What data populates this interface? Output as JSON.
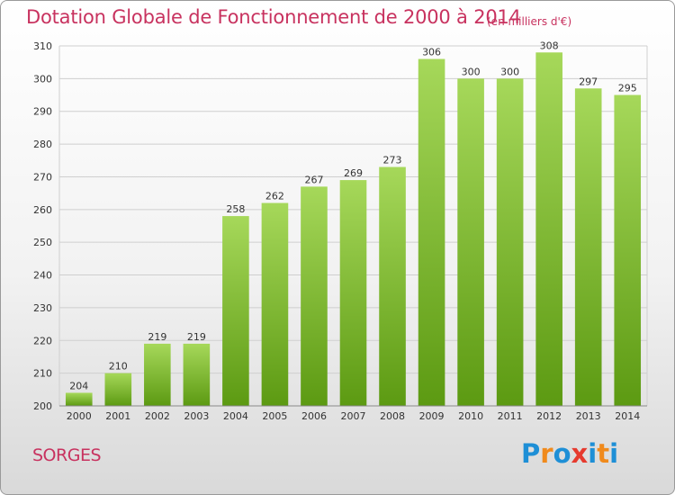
{
  "header": {
    "title": "Dotation Globale de Fonctionnement de 2000 à 2014",
    "unit": "(en milliers d'€)"
  },
  "footer": {
    "commune": "SORGES",
    "logo_letters": [
      "P",
      "r",
      "o",
      "x",
      "i",
      "t",
      "i"
    ],
    "logo_colors": [
      "#1e8fd6",
      "#f08a1c",
      "#1e8fd6",
      "#e63a2e",
      "#1e8fd6",
      "#f08a1c",
      "#1e8fd6"
    ]
  },
  "colors": {
    "bar_top": "#a6d85a",
    "bar_bottom": "#5c9a12",
    "grid": "#cfcfcf",
    "title": "#c8325f"
  },
  "chart_data": {
    "type": "bar",
    "title": "Dotation Globale de Fonctionnement de 2000 à 2014",
    "subtitle": "(en milliers d'€)",
    "xlabel": "",
    "ylabel": "",
    "categories": [
      "2000",
      "2001",
      "2002",
      "2003",
      "2004",
      "2005",
      "2006",
      "2007",
      "2008",
      "2009",
      "2010",
      "2011",
      "2012",
      "2013",
      "2014"
    ],
    "values": [
      204,
      210,
      219,
      219,
      258,
      262,
      267,
      269,
      273,
      306,
      300,
      300,
      308,
      297,
      295
    ],
    "ylim": [
      200,
      310
    ],
    "yticks": [
      200,
      210,
      220,
      230,
      240,
      250,
      260,
      270,
      280,
      290,
      300,
      310
    ],
    "grid": true,
    "legend": "none"
  }
}
